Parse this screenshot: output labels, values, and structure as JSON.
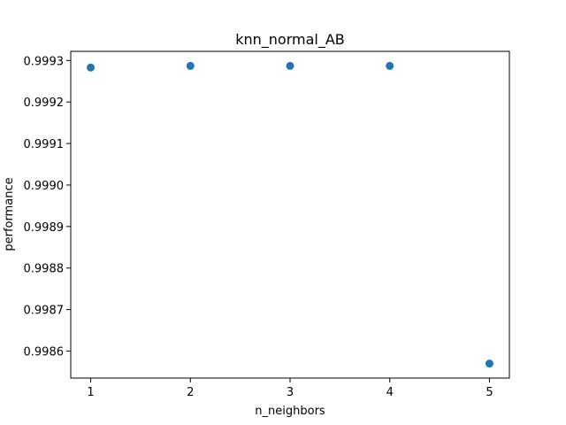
{
  "chart_data": {
    "type": "scatter",
    "title": "knn_normal_AB",
    "xlabel": "n_neighbors",
    "ylabel": "performance",
    "x": [
      1,
      2,
      3,
      4,
      5
    ],
    "y": [
      0.999283,
      0.999287,
      0.999287,
      0.999287,
      0.99857
    ],
    "xlim": [
      0.8,
      5.2
    ],
    "ylim": [
      0.998535,
      0.999322
    ],
    "xticks": [
      1,
      2,
      3,
      4,
      5
    ],
    "xtick_labels": [
      "1",
      "2",
      "3",
      "4",
      "5"
    ],
    "yticks": [
      0.9986,
      0.9987,
      0.9988,
      0.9989,
      0.999,
      0.9991,
      0.9992,
      0.9993
    ],
    "ytick_labels": [
      "0.9986",
      "0.9987",
      "0.9988",
      "0.9989",
      "0.9990",
      "0.9991",
      "0.9992",
      "0.9993"
    ],
    "marker_color": "#1f77b4",
    "grid": false,
    "legend": "none"
  }
}
